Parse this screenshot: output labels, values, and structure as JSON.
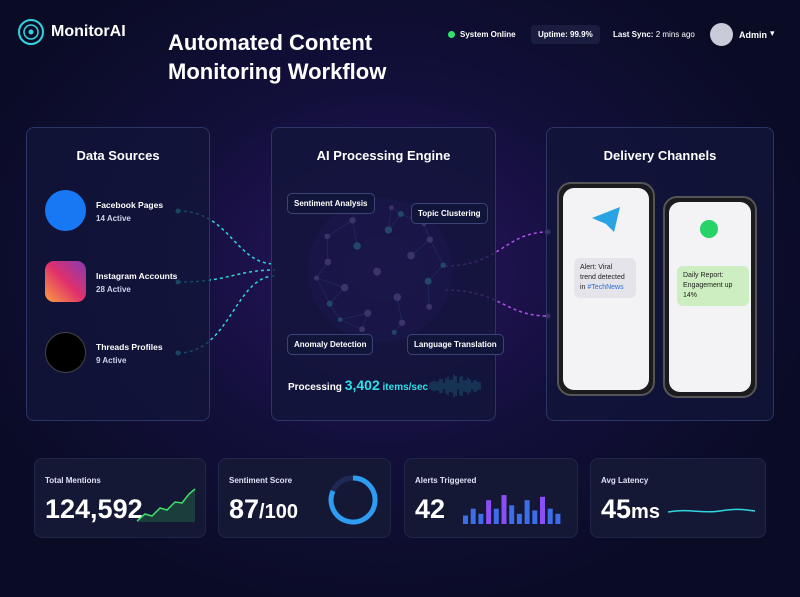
{
  "header": {
    "brand": "MonitorAI",
    "title_lines": [
      "Automated Content",
      "Monitoring Workflow"
    ],
    "status": "System Online",
    "uptime": {
      "label": "Uptime:",
      "value": "99.9%"
    },
    "last_sync": {
      "label": "Last Sync:",
      "value": "2 mins ago"
    },
    "user": "Admin"
  },
  "sources": {
    "title": "Data Sources",
    "items": [
      {
        "name": "Facebook Pages",
        "status": "14 Active"
      },
      {
        "name": "Instagram Accounts",
        "status": "28 Active"
      },
      {
        "name": "Threads Profiles",
        "status": "9 Active"
      }
    ]
  },
  "engine": {
    "title": "AI Processing Engine",
    "tags": [
      "Sentiment Analysis",
      "Topic Clustering",
      "Anomaly Detection",
      "Language Translation"
    ],
    "processing": {
      "label": "Processing",
      "value": "3,402",
      "unit": "items/sec"
    }
  },
  "delivery": {
    "title": "Delivery Channels",
    "messages": [
      {
        "text": "Alert: Viral trend detected in",
        "tag": "#TechNews"
      },
      {
        "text": "Daily Report: Engagement up 14%"
      }
    ]
  },
  "stats": [
    {
      "label": "Total Mentions",
      "value": "124,592"
    },
    {
      "label": "Sentiment Score",
      "value": "87",
      "suffix": "/100"
    },
    {
      "label": "Alerts Triggered",
      "value": "42"
    },
    {
      "label": "Avg Latency",
      "value": "45",
      "suffix": "ms"
    }
  ]
}
